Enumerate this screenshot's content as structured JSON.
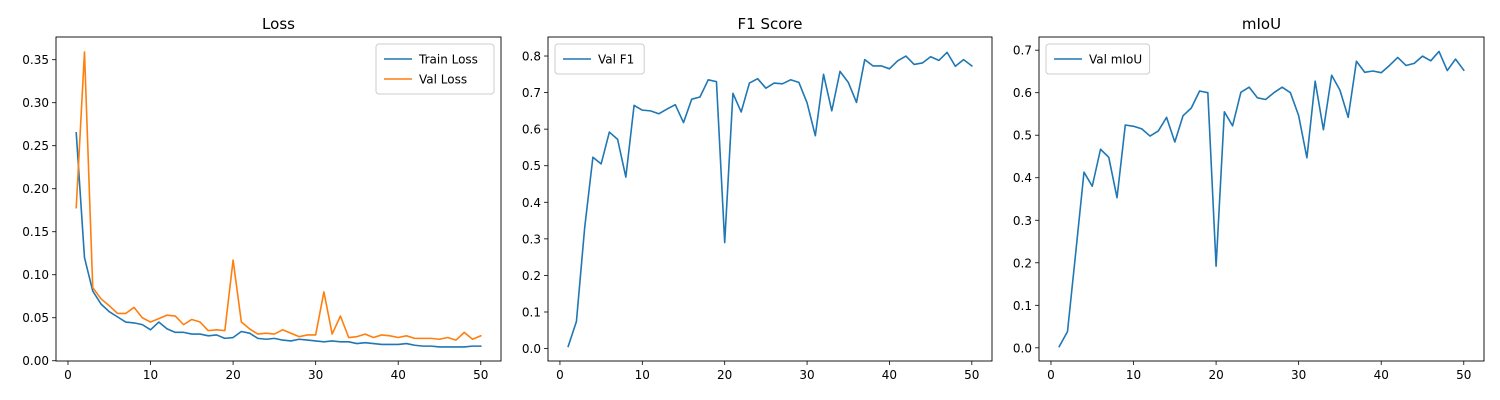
{
  "chart_data": [
    {
      "type": "line",
      "title": "Loss",
      "xlabel": "",
      "ylabel": "",
      "xlim": [
        -1.45,
        52.45
      ],
      "ylim": [
        -0.0003,
        0.3764
      ],
      "xticks": [
        0,
        10,
        20,
        30,
        40,
        50
      ],
      "xtick_labels": [
        "0",
        "10",
        "20",
        "30",
        "40",
        "50"
      ],
      "yticks": [
        0.0,
        0.05,
        0.1,
        0.15,
        0.2,
        0.25,
        0.3,
        0.35
      ],
      "ytick_labels": [
        "0.00",
        "0.05",
        "0.10",
        "0.15",
        "0.20",
        "0.25",
        "0.30",
        "0.35"
      ],
      "legend": "top-right",
      "grid": false,
      "x": [
        1,
        2,
        3,
        4,
        5,
        6,
        7,
        8,
        9,
        10,
        11,
        12,
        13,
        14,
        15,
        16,
        17,
        18,
        19,
        20,
        21,
        22,
        23,
        24,
        25,
        26,
        27,
        28,
        29,
        30,
        31,
        32,
        33,
        34,
        35,
        36,
        37,
        38,
        39,
        40,
        41,
        42,
        43,
        44,
        45,
        46,
        47,
        48,
        49,
        50
      ],
      "series": [
        {
          "name": "Train Loss",
          "color": "#1f77b4",
          "values": [
            0.265,
            0.12,
            0.081,
            0.066,
            0.057,
            0.051,
            0.045,
            0.044,
            0.042,
            0.036,
            0.045,
            0.037,
            0.033,
            0.033,
            0.031,
            0.031,
            0.029,
            0.03,
            0.026,
            0.027,
            0.034,
            0.032,
            0.026,
            0.025,
            0.026,
            0.024,
            0.023,
            0.025,
            0.024,
            0.023,
            0.022,
            0.023,
            0.022,
            0.022,
            0.02,
            0.021,
            0.02,
            0.019,
            0.019,
            0.019,
            0.02,
            0.018,
            0.017,
            0.017,
            0.016,
            0.016,
            0.016,
            0.016,
            0.017,
            0.017
          ]
        },
        {
          "name": "Val Loss",
          "color": "#ff7f0e",
          "values": [
            0.178,
            0.359,
            0.085,
            0.072,
            0.064,
            0.055,
            0.055,
            0.062,
            0.05,
            0.045,
            0.049,
            0.053,
            0.052,
            0.042,
            0.048,
            0.045,
            0.035,
            0.036,
            0.035,
            0.117,
            0.045,
            0.037,
            0.031,
            0.032,
            0.031,
            0.036,
            0.032,
            0.028,
            0.03,
            0.03,
            0.08,
            0.031,
            0.052,
            0.027,
            0.028,
            0.031,
            0.027,
            0.03,
            0.029,
            0.027,
            0.029,
            0.026,
            0.026,
            0.026,
            0.025,
            0.027,
            0.024,
            0.033,
            0.025,
            0.029
          ]
        }
      ]
    },
    {
      "type": "line",
      "title": "F1 Score",
      "xlabel": "",
      "ylabel": "",
      "xlim": [
        -1.45,
        52.45
      ],
      "ylim": [
        -0.034,
        0.852
      ],
      "xticks": [
        0,
        10,
        20,
        30,
        40,
        50
      ],
      "xtick_labels": [
        "0",
        "10",
        "20",
        "30",
        "40",
        "50"
      ],
      "yticks": [
        0.0,
        0.1,
        0.2,
        0.3,
        0.4,
        0.5,
        0.6,
        0.7,
        0.8
      ],
      "ytick_labels": [
        "0.0",
        "0.1",
        "0.2",
        "0.3",
        "0.4",
        "0.5",
        "0.6",
        "0.7",
        "0.8"
      ],
      "legend": "top-left",
      "grid": false,
      "x": [
        1,
        2,
        3,
        4,
        5,
        6,
        7,
        8,
        9,
        10,
        11,
        12,
        13,
        14,
        15,
        16,
        17,
        18,
        19,
        20,
        21,
        22,
        23,
        24,
        25,
        26,
        27,
        28,
        29,
        30,
        31,
        32,
        33,
        34,
        35,
        36,
        37,
        38,
        39,
        40,
        41,
        42,
        43,
        44,
        45,
        46,
        47,
        48,
        49,
        50
      ],
      "series": [
        {
          "name": "Val F1",
          "color": "#1f77b4",
          "values": [
            0.006,
            0.074,
            0.33,
            0.523,
            0.505,
            0.592,
            0.572,
            0.469,
            0.665,
            0.652,
            0.65,
            0.642,
            0.655,
            0.667,
            0.618,
            0.682,
            0.688,
            0.735,
            0.73,
            0.29,
            0.698,
            0.647,
            0.726,
            0.738,
            0.712,
            0.726,
            0.724,
            0.735,
            0.728,
            0.672,
            0.582,
            0.75,
            0.65,
            0.758,
            0.728,
            0.673,
            0.79,
            0.773,
            0.773,
            0.765,
            0.787,
            0.8,
            0.777,
            0.781,
            0.798,
            0.788,
            0.81,
            0.772,
            0.79,
            0.773
          ]
        }
      ]
    },
    {
      "type": "line",
      "title": "mIoU",
      "xlabel": "",
      "ylabel": "",
      "xlim": [
        -1.45,
        52.45
      ],
      "ylim": [
        -0.031,
        0.731
      ],
      "xticks": [
        0,
        10,
        20,
        30,
        40,
        50
      ],
      "xtick_labels": [
        "0",
        "10",
        "20",
        "30",
        "40",
        "50"
      ],
      "yticks": [
        0.0,
        0.1,
        0.2,
        0.3,
        0.4,
        0.5,
        0.6,
        0.7
      ],
      "ytick_labels": [
        "0.0",
        "0.1",
        "0.2",
        "0.3",
        "0.4",
        "0.5",
        "0.6",
        "0.7"
      ],
      "legend": "top-left",
      "grid": false,
      "x": [
        1,
        2,
        3,
        4,
        5,
        6,
        7,
        8,
        9,
        10,
        11,
        12,
        13,
        14,
        15,
        16,
        17,
        18,
        19,
        20,
        21,
        22,
        23,
        24,
        25,
        26,
        27,
        28,
        29,
        30,
        31,
        32,
        33,
        34,
        35,
        36,
        37,
        38,
        39,
        40,
        41,
        42,
        43,
        44,
        45,
        46,
        47,
        48,
        49,
        50
      ],
      "series": [
        {
          "name": "Val mIoU",
          "color": "#1f77b4",
          "values": [
            0.003,
            0.038,
            0.224,
            0.413,
            0.38,
            0.467,
            0.448,
            0.353,
            0.524,
            0.521,
            0.515,
            0.498,
            0.51,
            0.542,
            0.484,
            0.546,
            0.564,
            0.604,
            0.6,
            0.192,
            0.555,
            0.522,
            0.601,
            0.613,
            0.588,
            0.584,
            0.6,
            0.613,
            0.6,
            0.546,
            0.447,
            0.627,
            0.513,
            0.641,
            0.606,
            0.542,
            0.674,
            0.648,
            0.651,
            0.647,
            0.664,
            0.683,
            0.664,
            0.669,
            0.686,
            0.675,
            0.697,
            0.652,
            0.679,
            0.653
          ]
        }
      ]
    }
  ]
}
